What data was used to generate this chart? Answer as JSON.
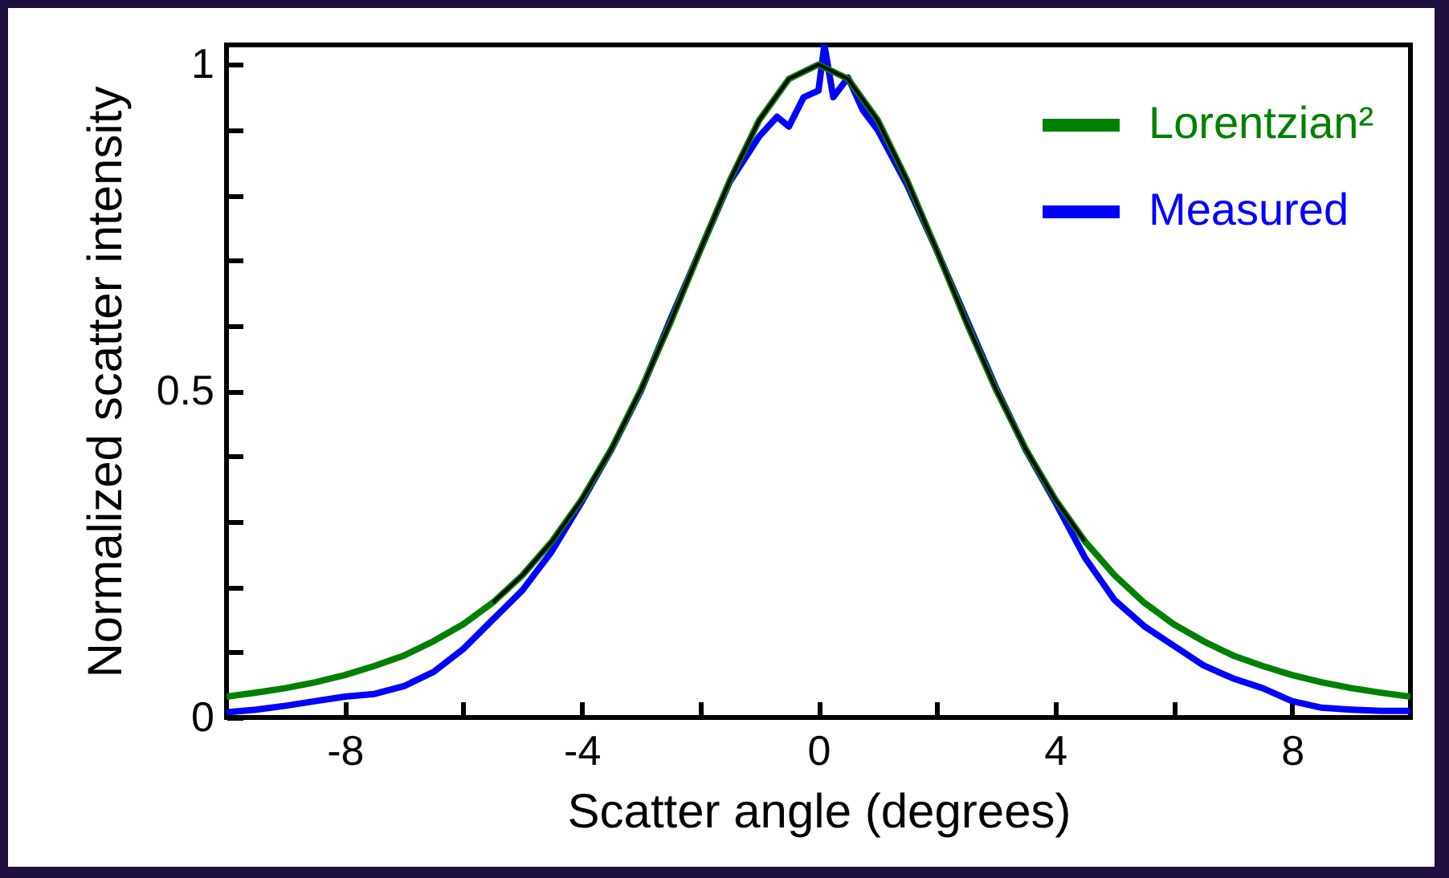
{
  "chart_data": {
    "type": "line",
    "xlabel": "Scatter angle (degrees)",
    "ylabel": "Normalized scatter intensity",
    "xlim": [
      -10,
      10
    ],
    "ylim": [
      0,
      1.03
    ],
    "xticks": [
      -8,
      {
        "value": -6,
        "label": null
      },
      -4,
      {
        "value": -2,
        "label": null
      },
      0,
      {
        "value": 2,
        "label": null
      },
      4,
      {
        "value": 6,
        "label": null
      },
      8
    ],
    "yticks": [
      0,
      {
        "value": 0.1,
        "label": null
      },
      {
        "value": 0.2,
        "label": null
      },
      {
        "value": 0.3,
        "label": null
      },
      {
        "value": 0.4,
        "label": null
      },
      0.5,
      {
        "value": 0.6,
        "label": null
      },
      {
        "value": 0.7,
        "label": null
      },
      {
        "value": 0.8,
        "label": null
      },
      {
        "value": 0.9,
        "label": null
      },
      1
    ],
    "legend": "top right",
    "series": [
      {
        "name": "Measured",
        "color": "#0000ff",
        "x": [
          -10,
          -9.5,
          -9,
          -8.5,
          -8,
          -7.5,
          -7,
          -6.5,
          -6,
          -5.5,
          -5,
          -4.5,
          -4,
          -3.5,
          -3,
          -2.5,
          -2,
          -1.5,
          -1,
          -0.7,
          -0.5,
          -0.25,
          0,
          0.1,
          0.25,
          0.5,
          0.75,
          1,
          1.5,
          2,
          2.5,
          3,
          3.5,
          4,
          4.5,
          5,
          5.5,
          6,
          6.5,
          7,
          7.5,
          8,
          8.5,
          9,
          9.5,
          10
        ],
        "values": [
          0.008,
          0.012,
          0.018,
          0.025,
          0.032,
          0.036,
          0.048,
          0.07,
          0.105,
          0.15,
          0.195,
          0.255,
          0.33,
          0.41,
          0.5,
          0.61,
          0.715,
          0.82,
          0.89,
          0.92,
          0.905,
          0.95,
          0.96,
          1.03,
          0.95,
          0.98,
          0.93,
          0.9,
          0.815,
          0.715,
          0.61,
          0.505,
          0.41,
          0.33,
          0.245,
          0.18,
          0.14,
          0.11,
          0.08,
          0.06,
          0.045,
          0.025,
          0.015,
          0.012,
          0.01,
          0.01
        ]
      },
      {
        "name": "Lorentzian²",
        "color": "#008000",
        "x": [
          -10,
          -9.5,
          -9,
          -8.5,
          -8,
          -7.5,
          -7,
          -6.5,
          -6,
          -5.5,
          -5,
          -4.5,
          -4,
          -3.5,
          -3,
          -2.5,
          -2,
          -1.5,
          -1,
          -0.5,
          0,
          0.5,
          1,
          1.5,
          2,
          2.5,
          3,
          3.5,
          4,
          4.5,
          5,
          5.5,
          6,
          6.5,
          7,
          7.5,
          8,
          8.5,
          9,
          9.5,
          10
        ],
        "values": [
          0.032,
          0.038,
          0.045,
          0.054,
          0.065,
          0.079,
          0.095,
          0.117,
          0.143,
          0.176,
          0.218,
          0.27,
          0.334,
          0.411,
          0.502,
          0.605,
          0.715,
          0.822,
          0.915,
          0.978,
          1,
          0.978,
          0.915,
          0.822,
          0.715,
          0.605,
          0.502,
          0.411,
          0.334,
          0.27,
          0.218,
          0.176,
          0.143,
          0.117,
          0.095,
          0.079,
          0.065,
          0.054,
          0.045,
          0.038,
          0.032
        ]
      },
      {
        "color": "#000000",
        "x": [
          -5.5,
          -5,
          -4.5,
          -4,
          -3.5,
          -3,
          -2.5,
          -2,
          -1.5,
          -1,
          -0.5,
          0,
          0.5,
          1,
          1.5,
          2,
          2.5,
          3,
          3.5,
          4,
          4.5
        ],
        "values": [
          0.176,
          0.218,
          0.27,
          0.334,
          0.411,
          0.502,
          0.605,
          0.715,
          0.822,
          0.915,
          0.978,
          1,
          0.978,
          0.915,
          0.822,
          0.715,
          0.605,
          0.502,
          0.411,
          0.334,
          0.27
        ]
      }
    ]
  }
}
